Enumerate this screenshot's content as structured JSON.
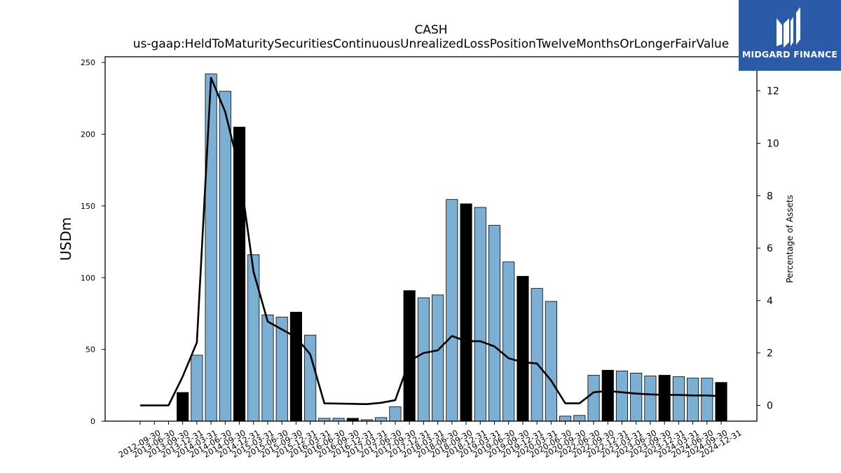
{
  "brand": {
    "name": "MIDGARD FINANCE",
    "icon": "midgard-logo-icon",
    "color": "#2b5aa8"
  },
  "chart_data": {
    "type": "bar",
    "title": "CASH",
    "subtitle": "us-gaap:HeldToMaturitySecuritiesContinuousUnrealizedLossPositionTwelveMonthsOrLongerFairValue",
    "ylabel": "USDm",
    "y2label": "Percentage of Assets",
    "ylim": [
      0,
      254
    ],
    "y2lim": [
      -0.6,
      13.3
    ],
    "yticks": [
      "0",
      "50",
      "100",
      "150",
      "200",
      "250"
    ],
    "y2ticks": [
      "0",
      "2",
      "4",
      "6",
      "8",
      "10",
      "12"
    ],
    "categories": [
      "2012-09-30",
      "2013-06-30",
      "2013-09-30",
      "2013-12-31",
      "2014-03-31",
      "2014-06-30",
      "2014-09-30",
      "2014-12-31",
      "2015-03-31",
      "2015-06-30",
      "2015-09-30",
      "2015-12-31",
      "2016-03-31",
      "2016-06-30",
      "2016-09-30",
      "2016-12-31",
      "2017-03-31",
      "2017-06-30",
      "2017-09-30",
      "2017-12-31",
      "2018-03-31",
      "2018-06-30",
      "2018-09-30",
      "2018-12-31",
      "2019-03-31",
      "2019-06-30",
      "2019-09-30",
      "2019-12-31",
      "2020-03-31",
      "2020-06-30",
      "2020-09-30",
      "2022-06-30",
      "2022-09-30",
      "2022-12-31",
      "2023-03-31",
      "2023-06-30",
      "2023-09-30",
      "2023-12-31",
      "2024-03-31",
      "2024-06-30",
      "2024-09-30",
      "2024-12-31"
    ],
    "series": [
      {
        "type": "bar",
        "values": [
          0,
          0,
          0,
          20,
          46,
          242,
          230,
          205,
          116,
          74,
          72.5,
          76,
          60,
          2,
          2,
          2,
          1,
          2.5,
          10,
          91,
          86,
          88,
          154.5,
          151.5,
          149,
          136.5,
          111,
          101,
          92.5,
          83.5,
          3.5,
          4,
          32,
          35.5,
          35,
          33.5,
          31.5,
          32,
          31,
          30,
          30,
          27
        ],
        "highlight": [
          false,
          false,
          false,
          true,
          false,
          false,
          false,
          true,
          false,
          false,
          false,
          true,
          false,
          false,
          false,
          true,
          false,
          false,
          false,
          true,
          false,
          false,
          false,
          true,
          false,
          false,
          false,
          true,
          false,
          false,
          false,
          false,
          false,
          true,
          false,
          false,
          false,
          true,
          false,
          false,
          false,
          true
        ]
      },
      {
        "type": "line",
        "values": [
          0,
          0,
          0,
          1.1,
          2.4,
          12.5,
          11.2,
          9.0,
          5.1,
          3.2,
          2.9,
          2.6,
          1.95,
          0.08,
          0.07,
          0.06,
          0.05,
          0.1,
          0.2,
          1.7,
          2.0,
          2.1,
          2.65,
          2.45,
          2.45,
          2.25,
          1.8,
          1.65,
          1.6,
          0.95,
          0.08,
          0.08,
          0.5,
          0.55,
          0.5,
          0.45,
          0.42,
          0.4,
          0.4,
          0.38,
          0.38,
          0.35
        ]
      }
    ],
    "colors": {
      "bar": "#7bafd4",
      "bar_highlight": "#000000",
      "line": "#000000"
    },
    "grid": false
  }
}
